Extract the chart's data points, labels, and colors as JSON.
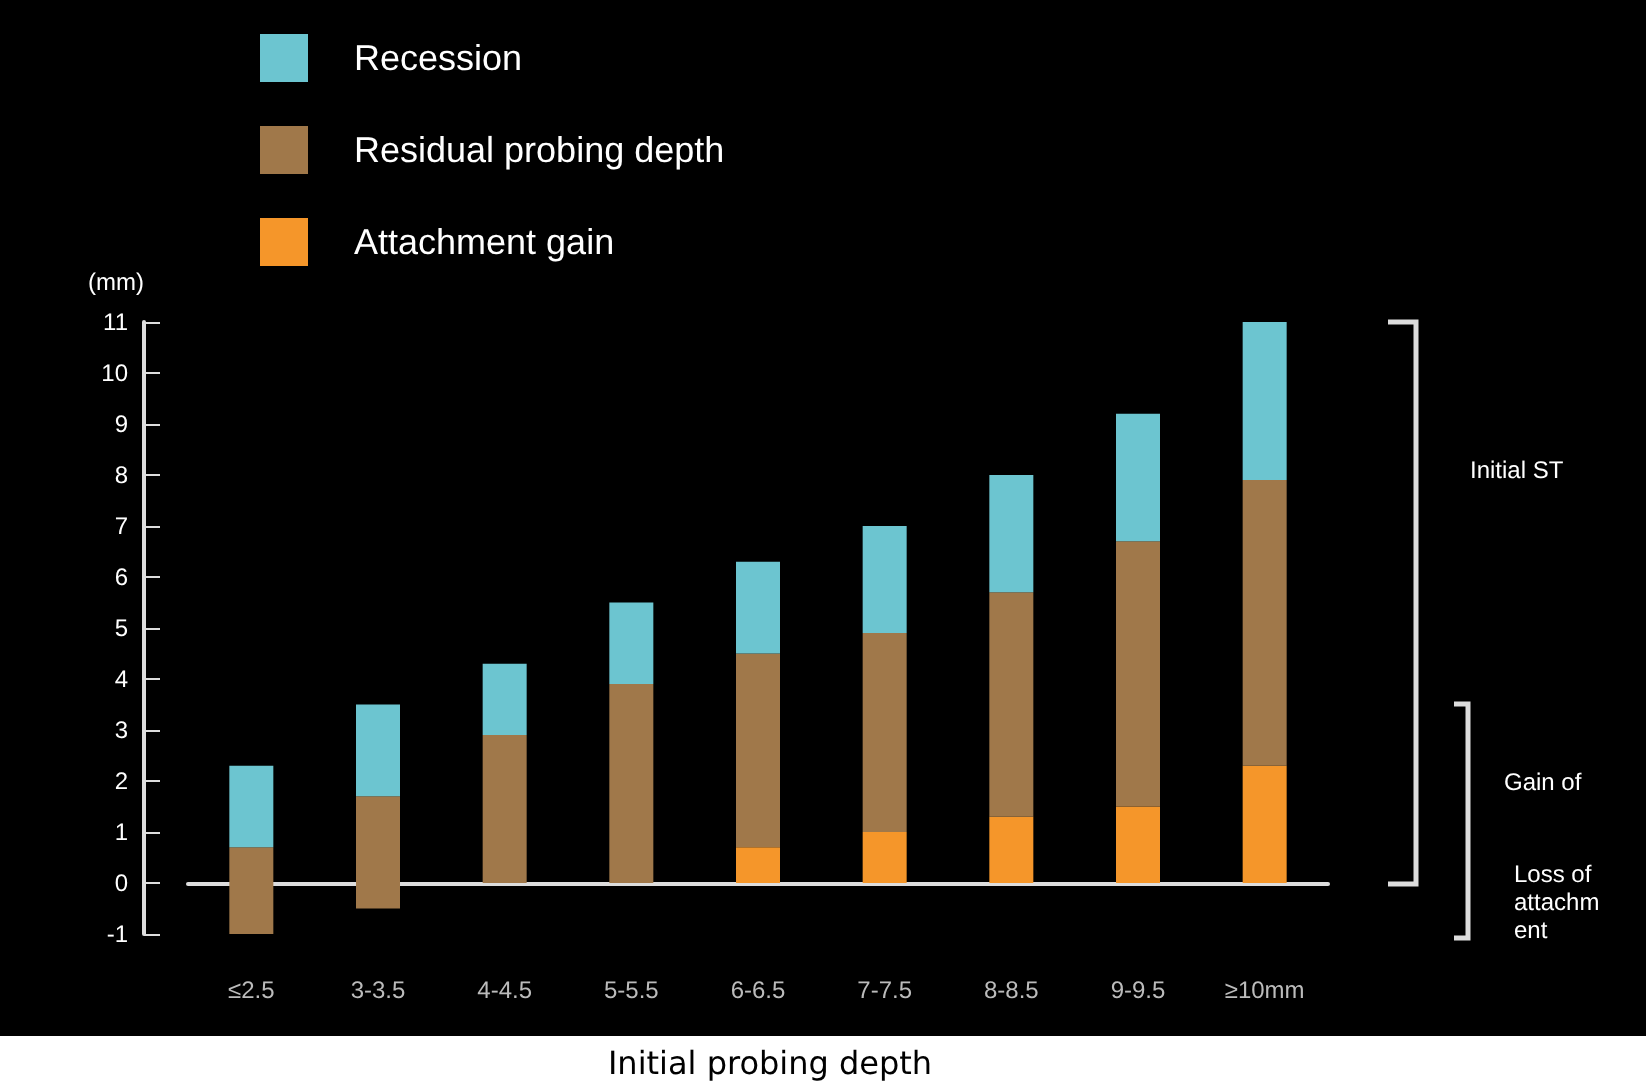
{
  "chart_data": {
    "type": "bar",
    "stacked": true,
    "ylabel": "(mm)",
    "xlabel": "Initial probing depth",
    "categories": [
      "≤2.5",
      "3-3.5",
      "4-4.5",
      "5-5.5",
      "6-6.5",
      "7-7.5",
      "8-8.5",
      "9-9.5",
      "≥10mm"
    ],
    "series": [
      {
        "color": "#a0784a",
        "values": [
          -1,
          -0.5,
          null,
          null,
          null,
          null,
          null,
          null,
          null
        ]
      },
      {
        "name": "Attachment gain",
        "color": "#f5962a",
        "values": [
          null,
          null,
          null,
          null,
          0.7,
          1.0,
          1.3,
          1.5,
          2.3
        ]
      },
      {
        "name": "Residual probing depth",
        "color": "#a0784a",
        "values": [
          0.7,
          1.7,
          2.9,
          3.9,
          3.8,
          3.9,
          4.4,
          5.2,
          5.6
        ]
      },
      {
        "name": "Recession",
        "color": "#6cc5d0",
        "values": [
          1.6,
          1.8,
          1.4,
          1.6,
          1.8,
          2.1,
          2.3,
          2.5,
          3.1
        ]
      }
    ],
    "ylim": [
      -1,
      11
    ],
    "yticks": [
      -1,
      0,
      1,
      2,
      3,
      4,
      5,
      6,
      7,
      8,
      9,
      10,
      11
    ],
    "legend": "top left",
    "annotations": [
      "Initial ST",
      "Gain of",
      "Loss of attachment"
    ]
  }
}
